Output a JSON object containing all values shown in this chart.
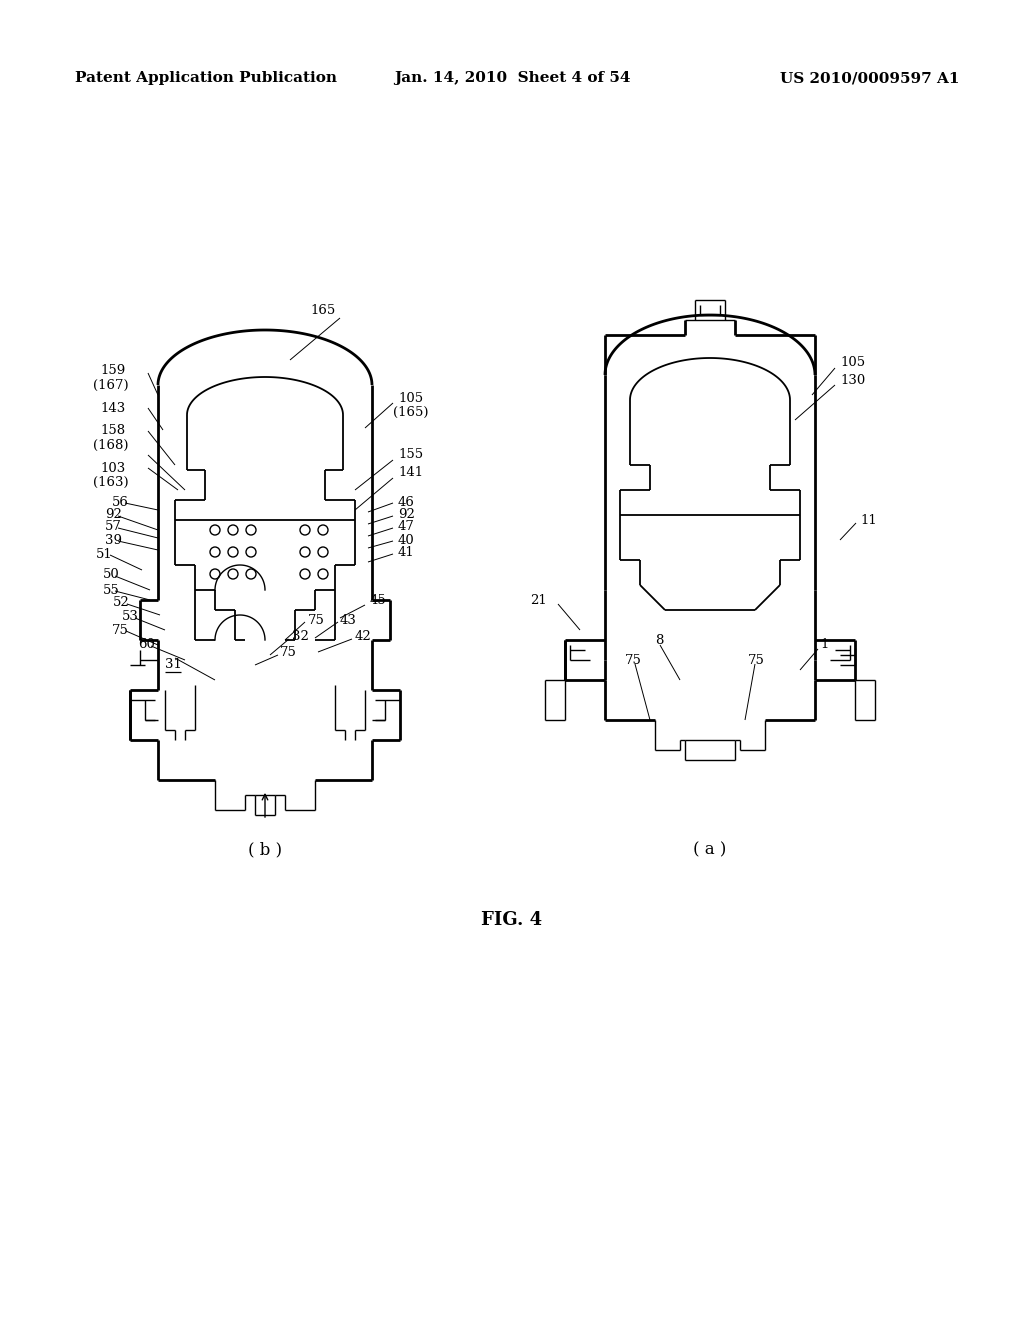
{
  "background_color": "#ffffff",
  "header_left": "Patent Application Publication",
  "header_center": "Jan. 14, 2010  Sheet 4 of 54",
  "header_right": "US 2010/0009597 A1",
  "figure_label": "FIG. 4",
  "diagram_b_label": "( b )",
  "diagram_a_label": "( a )"
}
